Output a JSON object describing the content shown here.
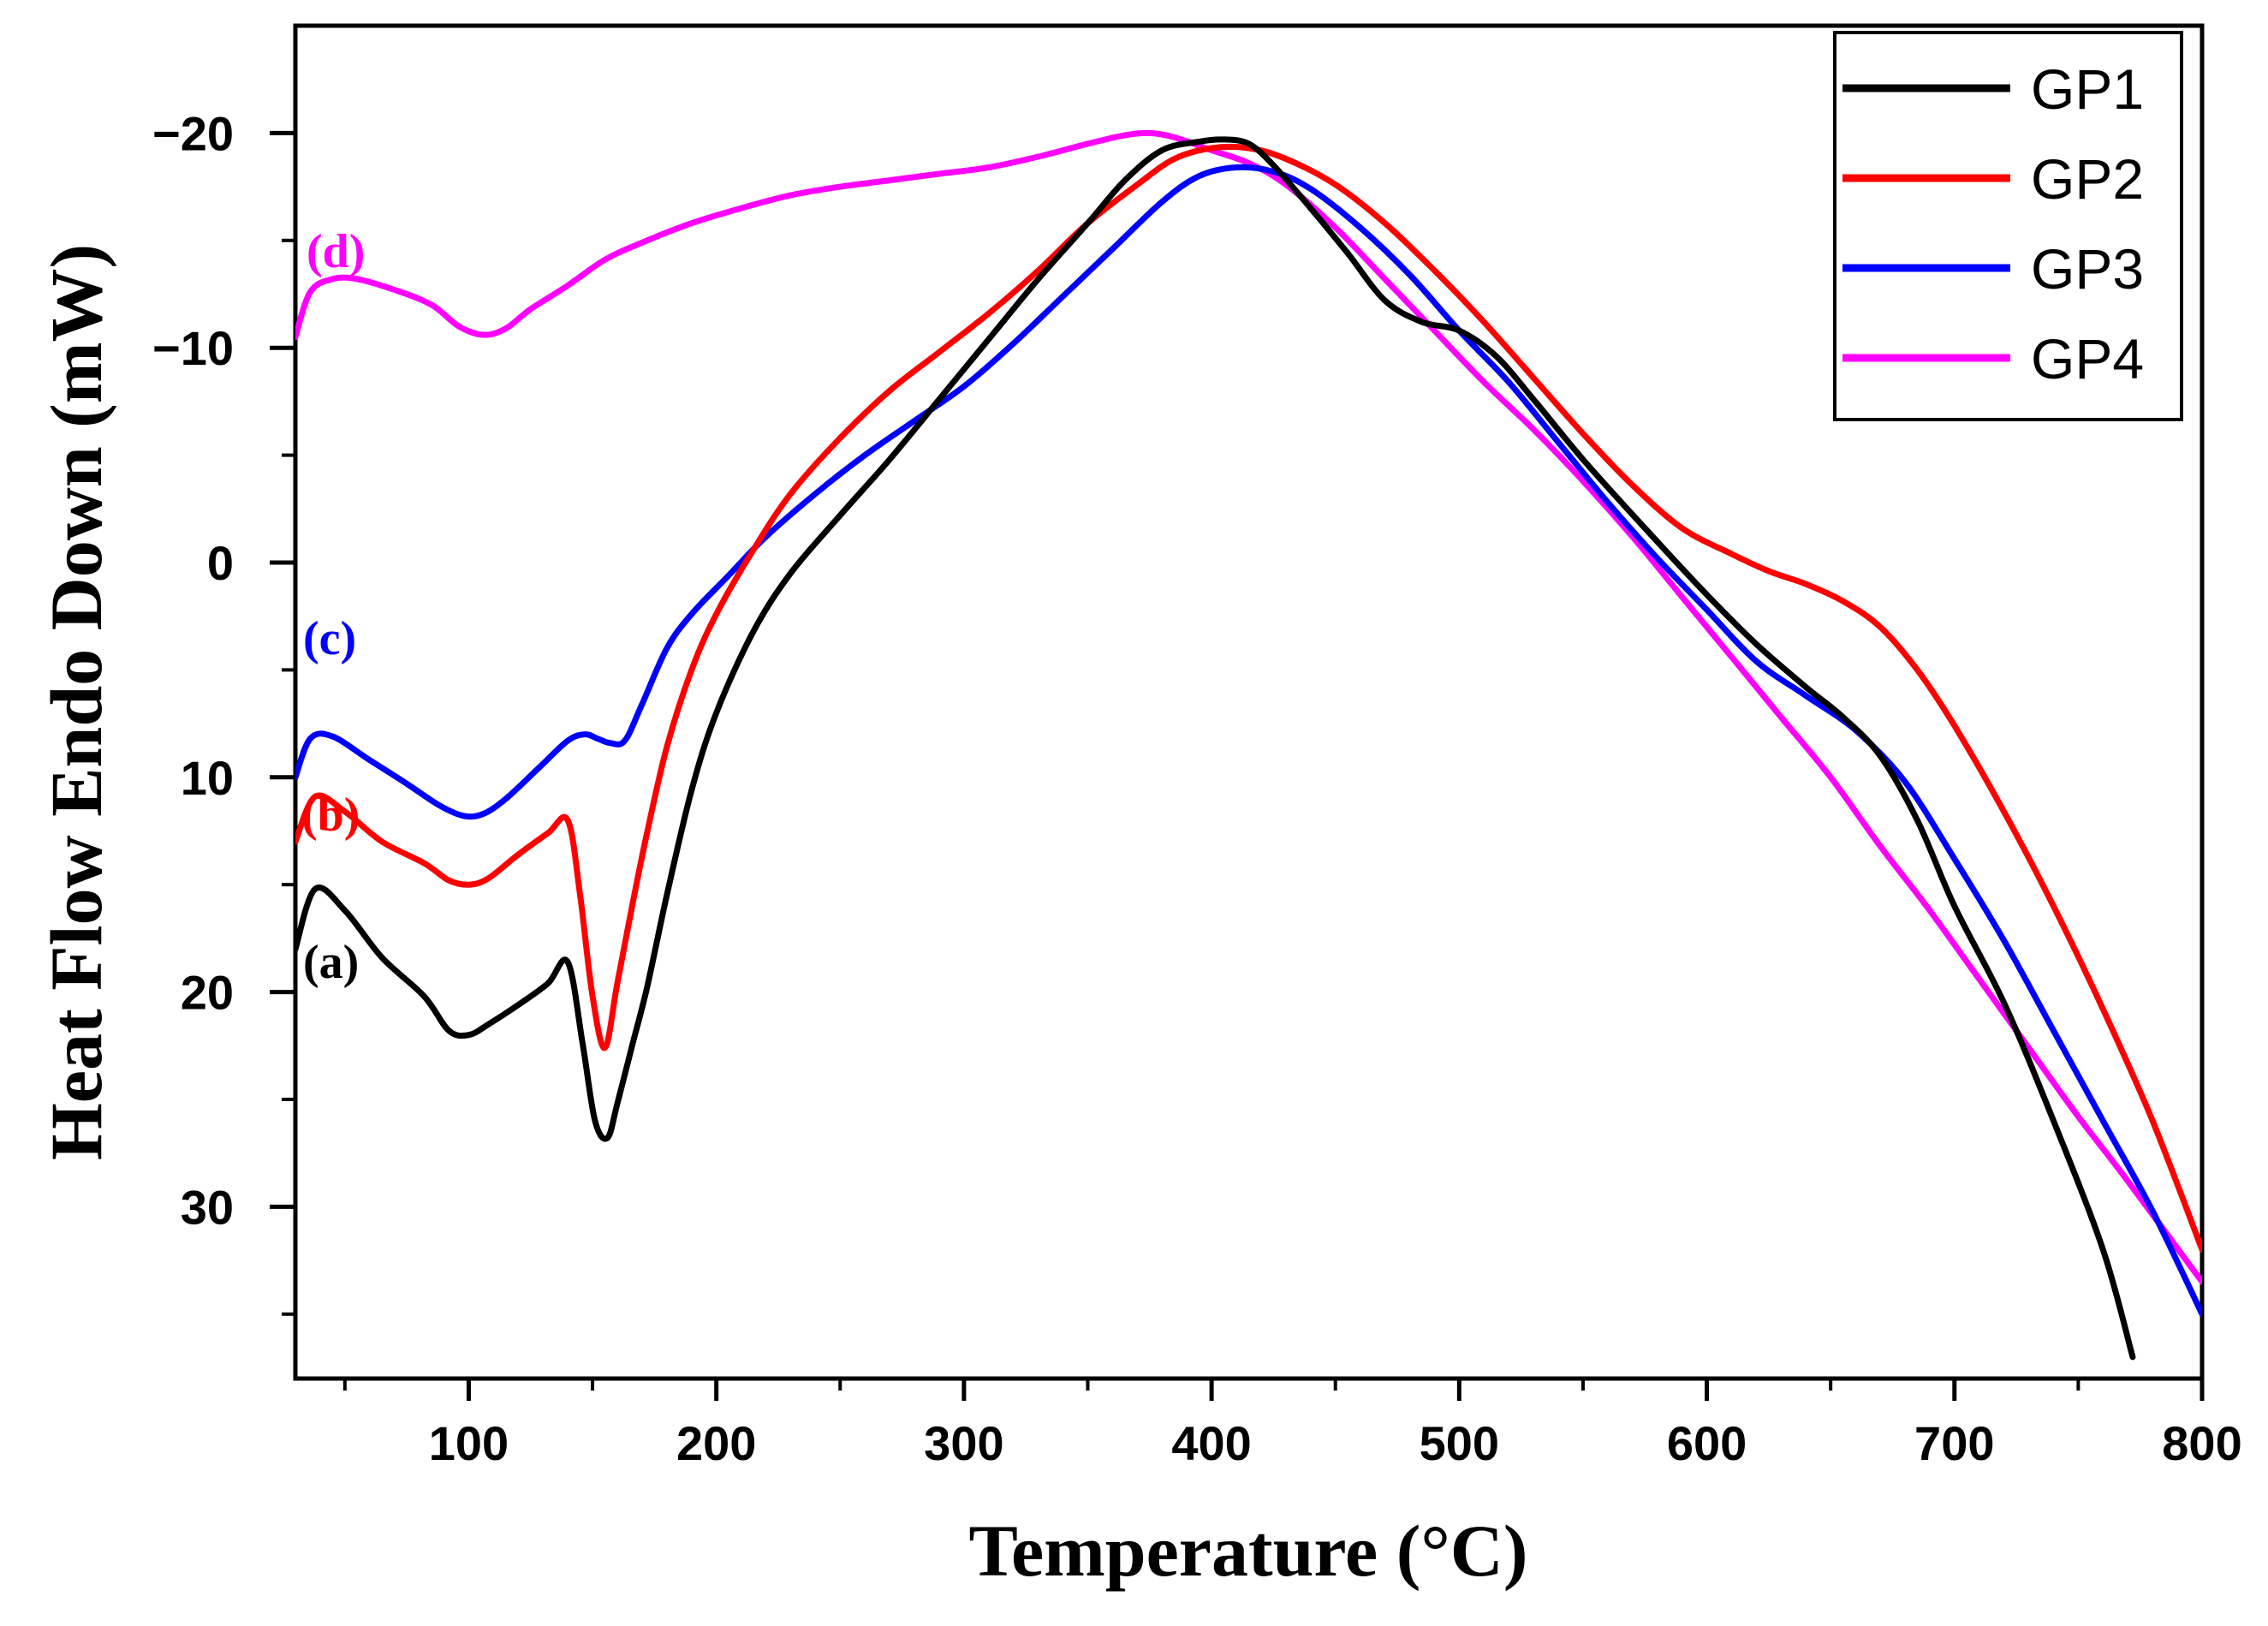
{
  "chart_data": {
    "type": "line",
    "title": "",
    "xlabel": "Temperature (°C)",
    "ylabel": "Heat Flow Endo Down (mW)",
    "xlim": [
      30,
      800
    ],
    "ylim": [
      -25,
      38
    ],
    "y_inverted": true,
    "x_ticks": [
      100,
      200,
      300,
      400,
      500,
      600,
      700,
      800
    ],
    "x_tick_labels": [
      "100",
      "200",
      "300",
      "400",
      "500",
      "600",
      "700",
      "800"
    ],
    "y_ticks": [
      -20,
      -10,
      0,
      10,
      20,
      30
    ],
    "y_tick_labels": [
      "−20",
      "−10",
      "0",
      "10",
      "20",
      "30"
    ],
    "legend_position": "top-right",
    "series": [
      {
        "name": "GP1",
        "color": "#000000",
        "annotation": "(a)",
        "x": [
          30,
          38,
          50,
          65,
          82,
          92,
          100,
          108,
          120,
          132,
          140,
          146,
          151,
          156,
          160,
          166,
          172,
          180,
          190,
          200,
          215,
          230,
          250,
          270,
          290,
          310,
          330,
          350,
          365,
          380,
          395,
          405,
          415,
          425,
          440,
          455,
          470,
          485,
          500,
          515,
          530,
          550,
          575,
          600,
          620,
          640,
          655,
          670,
          685,
          700,
          720,
          740,
          760,
          772
        ],
        "y": [
          18,
          15.2,
          16.2,
          18.4,
          20.2,
          21.8,
          22,
          21.5,
          20.6,
          19.6,
          18.6,
          22.4,
          26,
          26.8,
          25.2,
          22.5,
          19.8,
          15.5,
          10.6,
          7,
          3.2,
          0.5,
          -2.2,
          -4.8,
          -7.6,
          -10.4,
          -13.2,
          -15.8,
          -17.8,
          -19.2,
          -19.6,
          -19.7,
          -19.5,
          -18.5,
          -16.5,
          -14.4,
          -12.2,
          -11.2,
          -10.8,
          -9.6,
          -7.6,
          -4.8,
          -1.6,
          1.5,
          3.8,
          5.8,
          7.2,
          9,
          12,
          16,
          20.5,
          26,
          32,
          37
        ]
      },
      {
        "name": "GP2",
        "color": "#ff0000",
        "annotation": "(b)",
        "x": [
          30,
          38,
          50,
          65,
          82,
          92,
          100,
          108,
          120,
          132,
          140,
          145,
          150,
          155,
          160,
          166,
          172,
          180,
          190,
          200,
          215,
          230,
          250,
          270,
          290,
          310,
          330,
          350,
          370,
          385,
          400,
          415,
          430,
          450,
          470,
          490,
          510,
          530,
          550,
          570,
          590,
          610,
          625,
          640,
          655,
          670,
          685,
          700,
          720,
          740,
          760,
          780,
          800
        ],
        "y": [
          13,
          10.9,
          11.6,
          13,
          14,
          14.8,
          15,
          14.7,
          13.6,
          12.6,
          12,
          15.5,
          20.2,
          22.6,
          19.6,
          16,
          12.6,
          8.6,
          5,
          2.4,
          -0.6,
          -3.2,
          -5.8,
          -8,
          -9.8,
          -11.6,
          -13.6,
          -15.8,
          -17.6,
          -18.8,
          -19.3,
          -19.3,
          -18.8,
          -17.6,
          -15.8,
          -13.6,
          -11.2,
          -8.6,
          -6,
          -3.6,
          -1.6,
          -0.4,
          0.4,
          1,
          1.8,
          3,
          5,
          7.6,
          11.6,
          16,
          20.8,
          26,
          32
        ]
      },
      {
        "name": "GP3",
        "color": "#0000ff",
        "annotation": "(c)",
        "x": [
          30,
          36,
          45,
          60,
          75,
          88,
          98,
          106,
          115,
          128,
          140,
          147,
          152,
          157,
          163,
          170,
          180,
          190,
          205,
          220,
          240,
          260,
          280,
          300,
          320,
          340,
          360,
          380,
          395,
          410,
          425,
          440,
          460,
          480,
          500,
          520,
          540,
          560,
          580,
          600,
          620,
          640,
          660,
          680,
          700,
          720,
          740,
          760,
          780,
          800
        ],
        "y": [
          10,
          8.2,
          8.1,
          9.2,
          10.3,
          11.3,
          11.8,
          11.7,
          11,
          9.6,
          8.3,
          8,
          8.2,
          8.4,
          8.3,
          6.6,
          4,
          2.4,
          0.6,
          -1.2,
          -3.2,
          -5,
          -6.6,
          -8.2,
          -10.2,
          -12.4,
          -14.6,
          -16.8,
          -18,
          -18.4,
          -18.2,
          -17.4,
          -15.6,
          -13.4,
          -10.8,
          -8.4,
          -5.6,
          -2.8,
          -0.2,
          2.2,
          4.6,
          6.2,
          7.8,
          10.2,
          13.8,
          17.6,
          21.8,
          26,
          30.2,
          35
        ]
      },
      {
        "name": "GP4",
        "color": "#ff00ff",
        "annotation": "(d)",
        "x": [
          30,
          36,
          45,
          55,
          70,
          85,
          96,
          106,
          115,
          125,
          140,
          155,
          170,
          190,
          210,
          230,
          250,
          270,
          290,
          310,
          330,
          350,
          365,
          375,
          385,
          400,
          415,
          430,
          450,
          470,
          490,
          510,
          530,
          550,
          570,
          590,
          610,
          630,
          650,
          670,
          690,
          710,
          730,
          750,
          770,
          800
        ],
        "y": [
          -10.5,
          -12.6,
          -13.2,
          -13.2,
          -12.7,
          -12,
          -11,
          -10.6,
          -10.9,
          -11.8,
          -12.9,
          -14.1,
          -14.9,
          -15.8,
          -16.5,
          -17.1,
          -17.5,
          -17.8,
          -18.1,
          -18.4,
          -18.9,
          -19.5,
          -19.9,
          -20,
          -19.8,
          -19.2,
          -18.6,
          -17.6,
          -15.6,
          -13.2,
          -10.8,
          -8.4,
          -6.2,
          -3.8,
          -1.2,
          1.6,
          4.4,
          7.2,
          10,
          13.2,
          16.2,
          19.4,
          22.6,
          25.8,
          28.8,
          33.5
        ]
      }
    ]
  }
}
